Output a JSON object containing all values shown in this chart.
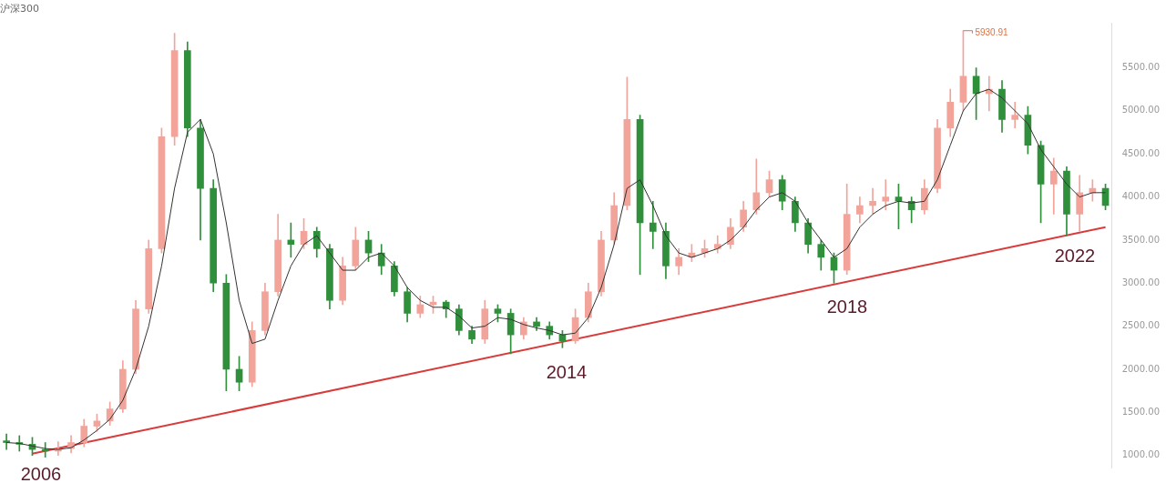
{
  "chart_data": {
    "type": "candlestick",
    "title": "沪深300",
    "categories": [
      null,
      null,
      null,
      null,
      null,
      null,
      null,
      null,
      null,
      null,
      null,
      null,
      null,
      null,
      null,
      null,
      null,
      null,
      null,
      null,
      null,
      null,
      null,
      null,
      null,
      null,
      null,
      null,
      null,
      null,
      null,
      null,
      null,
      null,
      null,
      null,
      null,
      null,
      null,
      null,
      null,
      null,
      null,
      null,
      null,
      null,
      null,
      null,
      null,
      null,
      null,
      null,
      null,
      null,
      null,
      null,
      null,
      null,
      null,
      null,
      null,
      null,
      null,
      null,
      null,
      null,
      null,
      null,
      null,
      null,
      null,
      null,
      null,
      null,
      null,
      null,
      null,
      null,
      null,
      null,
      null,
      null,
      null,
      null,
      null,
      null
    ],
    "ohlc": [
      [
        1170,
        1250,
        1070,
        1150
      ],
      [
        1150,
        1230,
        1050,
        1130
      ],
      [
        1130,
        1210,
        1000,
        1070
      ],
      [
        1070,
        1150,
        980,
        1050
      ],
      [
        1050,
        1160,
        1000,
        1080
      ],
      [
        1080,
        1230,
        1030,
        1150
      ],
      [
        1150,
        1420,
        1100,
        1340
      ],
      [
        1340,
        1480,
        1280,
        1400
      ],
      [
        1400,
        1620,
        1350,
        1540
      ],
      [
        1540,
        2100,
        1500,
        2000
      ],
      [
        2000,
        2800,
        1950,
        2700
      ],
      [
        2700,
        3500,
        2650,
        3400
      ],
      [
        3400,
        4800,
        3350,
        4700
      ],
      [
        4700,
        5900,
        4600,
        5700
      ],
      [
        5700,
        5800,
        4700,
        4800
      ],
      [
        4800,
        4900,
        3500,
        4100
      ],
      [
        4100,
        4200,
        2900,
        3000
      ],
      [
        3000,
        3100,
        1750,
        2000
      ],
      [
        2000,
        2150,
        1750,
        1850
      ],
      [
        1850,
        2550,
        1800,
        2450
      ],
      [
        2450,
        3000,
        2400,
        2900
      ],
      [
        2900,
        3800,
        2850,
        3500
      ],
      [
        3500,
        3700,
        3300,
        3450
      ],
      [
        3450,
        3750,
        3400,
        3600
      ],
      [
        3600,
        3650,
        3300,
        3400
      ],
      [
        3400,
        3450,
        2700,
        2800
      ],
      [
        2800,
        3300,
        2750,
        3200
      ],
      [
        3200,
        3650,
        3150,
        3500
      ],
      [
        3500,
        3600,
        3250,
        3350
      ],
      [
        3350,
        3450,
        3100,
        3200
      ],
      [
        3200,
        3250,
        2850,
        2900
      ],
      [
        2900,
        2950,
        2550,
        2650
      ],
      [
        2650,
        2850,
        2600,
        2750
      ],
      [
        2750,
        2850,
        2650,
        2780
      ],
      [
        2780,
        2800,
        2600,
        2700
      ],
      [
        2700,
        2750,
        2400,
        2450
      ],
      [
        2450,
        2500,
        2300,
        2350
      ],
      [
        2350,
        2800,
        2300,
        2700
      ],
      [
        2700,
        2750,
        2550,
        2650
      ],
      [
        2650,
        2700,
        2180,
        2400
      ],
      [
        2400,
        2600,
        2350,
        2550
      ],
      [
        2550,
        2600,
        2450,
        2500
      ],
      [
        2500,
        2550,
        2350,
        2400
      ],
      [
        2400,
        2450,
        2250,
        2330
      ],
      [
        2330,
        2700,
        2300,
        2600
      ],
      [
        2600,
        3000,
        2550,
        2900
      ],
      [
        2900,
        3600,
        2850,
        3500
      ],
      [
        3500,
        4050,
        3450,
        3900
      ],
      [
        3900,
        5390,
        3850,
        4900
      ],
      [
        4900,
        4950,
        3100,
        3700
      ],
      [
        3700,
        3950,
        3400,
        3600
      ],
      [
        3600,
        3700,
        3050,
        3200
      ],
      [
        3200,
        3400,
        3100,
        3300
      ],
      [
        3300,
        3450,
        3250,
        3350
      ],
      [
        3350,
        3500,
        3300,
        3400
      ],
      [
        3400,
        3550,
        3350,
        3450
      ],
      [
        3450,
        3750,
        3400,
        3650
      ],
      [
        3650,
        3950,
        3600,
        3850
      ],
      [
        3850,
        4440,
        3800,
        4050
      ],
      [
        4050,
        4300,
        4000,
        4200
      ],
      [
        4200,
        4250,
        3850,
        3950
      ],
      [
        3950,
        4000,
        3600,
        3700
      ],
      [
        3700,
        3750,
        3350,
        3450
      ],
      [
        3450,
        3500,
        3150,
        3300
      ],
      [
        3300,
        3350,
        3000,
        3150
      ],
      [
        3150,
        4150,
        3100,
        3800
      ],
      [
        3800,
        4000,
        3700,
        3900
      ],
      [
        3900,
        4100,
        3800,
        3950
      ],
      [
        3950,
        4200,
        3850,
        4000
      ],
      [
        4000,
        4150,
        3630,
        3950
      ],
      [
        3950,
        4000,
        3700,
        3850
      ],
      [
        3850,
        4200,
        3800,
        4100
      ],
      [
        4100,
        4900,
        4050,
        4800
      ],
      [
        4800,
        5250,
        4700,
        5100
      ],
      [
        5100,
        5930,
        5000,
        5400
      ],
      [
        5400,
        5500,
        4900,
        5200
      ],
      [
        5200,
        5400,
        5000,
        5250
      ],
      [
        5250,
        5350,
        4750,
        4900
      ],
      [
        4900,
        5100,
        4800,
        4950
      ],
      [
        4950,
        5050,
        4500,
        4600
      ],
      [
        4600,
        4650,
        3700,
        4150
      ],
      [
        4150,
        4450,
        3800,
        4300
      ],
      [
        4300,
        4350,
        3550,
        3800
      ],
      [
        3800,
        4250,
        3600,
        4050
      ],
      [
        4050,
        4200,
        3950,
        4100
      ],
      [
        4100,
        4150,
        3850,
        3900
      ]
    ],
    "colors": [
      "#2f8f3a",
      "#2f8f3a",
      "#2f8f3a",
      "#2f8f3a",
      "#f2a49b",
      "#f2a49b",
      "#f2a49b",
      "#f2a49b",
      "#f2a49b",
      "#f2a49b",
      "#f2a49b",
      "#f2a49b",
      "#f2a49b",
      "#f2a49b",
      "#2f8f3a",
      "#2f8f3a",
      "#2f8f3a",
      "#2f8f3a",
      "#2f8f3a",
      "#f2a49b",
      "#f2a49b",
      "#f2a49b",
      "#2f8f3a",
      "#f2a49b",
      "#2f8f3a",
      "#2f8f3a",
      "#f2a49b",
      "#f2a49b",
      "#2f8f3a",
      "#2f8f3a",
      "#2f8f3a",
      "#2f8f3a",
      "#f2a49b",
      "#f2a49b",
      "#2f8f3a",
      "#2f8f3a",
      "#2f8f3a",
      "#f2a49b",
      "#2f8f3a",
      "#2f8f3a",
      "#f2a49b",
      "#2f8f3a",
      "#2f8f3a",
      "#2f8f3a",
      "#f2a49b",
      "#f2a49b",
      "#f2a49b",
      "#f2a49b",
      "#f2a49b",
      "#2f8f3a",
      "#2f8f3a",
      "#2f8f3a",
      "#f2a49b",
      "#f2a49b",
      "#f2a49b",
      "#f2a49b",
      "#f2a49b",
      "#f2a49b",
      "#f2a49b",
      "#f2a49b",
      "#2f8f3a",
      "#2f8f3a",
      "#2f8f3a",
      "#2f8f3a",
      "#2f8f3a",
      "#f2a49b",
      "#f2a49b",
      "#f2a49b",
      "#f2a49b",
      "#2f8f3a",
      "#2f8f3a",
      "#f2a49b",
      "#f2a49b",
      "#f2a49b",
      "#f2a49b",
      "#2f8f3a",
      "#f2a49b",
      "#2f8f3a",
      "#f2a49b",
      "#2f8f3a",
      "#2f8f3a",
      "#f2a49b",
      "#2f8f3a",
      "#f2a49b",
      "#f2a49b",
      "#2f8f3a"
    ],
    "series": [
      {
        "type": "line",
        "color": "#333333",
        "values": [
          1150,
          1140,
          1110,
          1080,
          1070,
          1090,
          1180,
          1290,
          1420,
          1640,
          2000,
          2500,
          3200,
          4100,
          4750,
          4900,
          4500,
          3700,
          2800,
          2300,
          2350,
          2800,
          3200,
          3450,
          3550,
          3350,
          3150,
          3150,
          3300,
          3350,
          3200,
          2950,
          2800,
          2720,
          2720,
          2620,
          2480,
          2500,
          2600,
          2580,
          2520,
          2480,
          2450,
          2400,
          2420,
          2600,
          2950,
          3450,
          4100,
          4200,
          3900,
          3550,
          3350,
          3300,
          3350,
          3400,
          3500,
          3650,
          3850,
          4000,
          4050,
          3950,
          3700,
          3500,
          3300,
          3400,
          3650,
          3800,
          3900,
          3950,
          3930,
          3950,
          4200,
          4600,
          5000,
          5200,
          5250,
          5150,
          5000,
          4850,
          4550,
          4350,
          4150,
          4000,
          4050,
          4050
        ]
      },
      {
        "type": "line",
        "color": "#d93a3a",
        "values": [
          null,
          null,
          1020,
          null,
          null,
          null,
          null,
          null,
          null,
          null,
          null,
          null,
          null,
          null,
          null,
          null,
          null,
          null,
          null,
          null,
          null,
          null,
          null,
          null,
          null,
          null,
          null,
          null,
          null,
          null,
          null,
          null,
          null,
          null,
          null,
          null,
          null,
          null,
          null,
          null,
          null,
          null,
          null,
          null,
          null,
          null,
          null,
          null,
          null,
          null,
          null,
          null,
          null,
          null,
          null,
          null,
          null,
          null,
          null,
          null,
          null,
          null,
          null,
          null,
          null,
          null,
          null,
          null,
          null,
          null,
          null,
          null,
          null,
          null,
          null,
          null,
          null,
          null,
          null,
          null,
          null,
          null,
          null,
          null,
          null,
          3650
        ]
      }
    ],
    "ylim": [
      860,
      6020
    ],
    "yticks": [
      {
        "value": 1000,
        "label": "1000.00"
      },
      {
        "value": 1500,
        "label": "1500.00"
      },
      {
        "value": 2000,
        "label": "2000.00"
      },
      {
        "value": 2500,
        "label": "2500.00"
      },
      {
        "value": 3000,
        "label": "3000.00"
      },
      {
        "value": 3500,
        "label": "3500.00"
      },
      {
        "value": 4000,
        "label": "4000.00"
      },
      {
        "value": 4500,
        "label": "4500.00"
      },
      {
        "value": 5000,
        "label": "5000.00"
      },
      {
        "value": 5500,
        "label": "5500.00"
      }
    ],
    "tick_labels": "y",
    "annotations": [
      "2006",
      "2014",
      "2018",
      "2022",
      "5930.91"
    ]
  }
}
